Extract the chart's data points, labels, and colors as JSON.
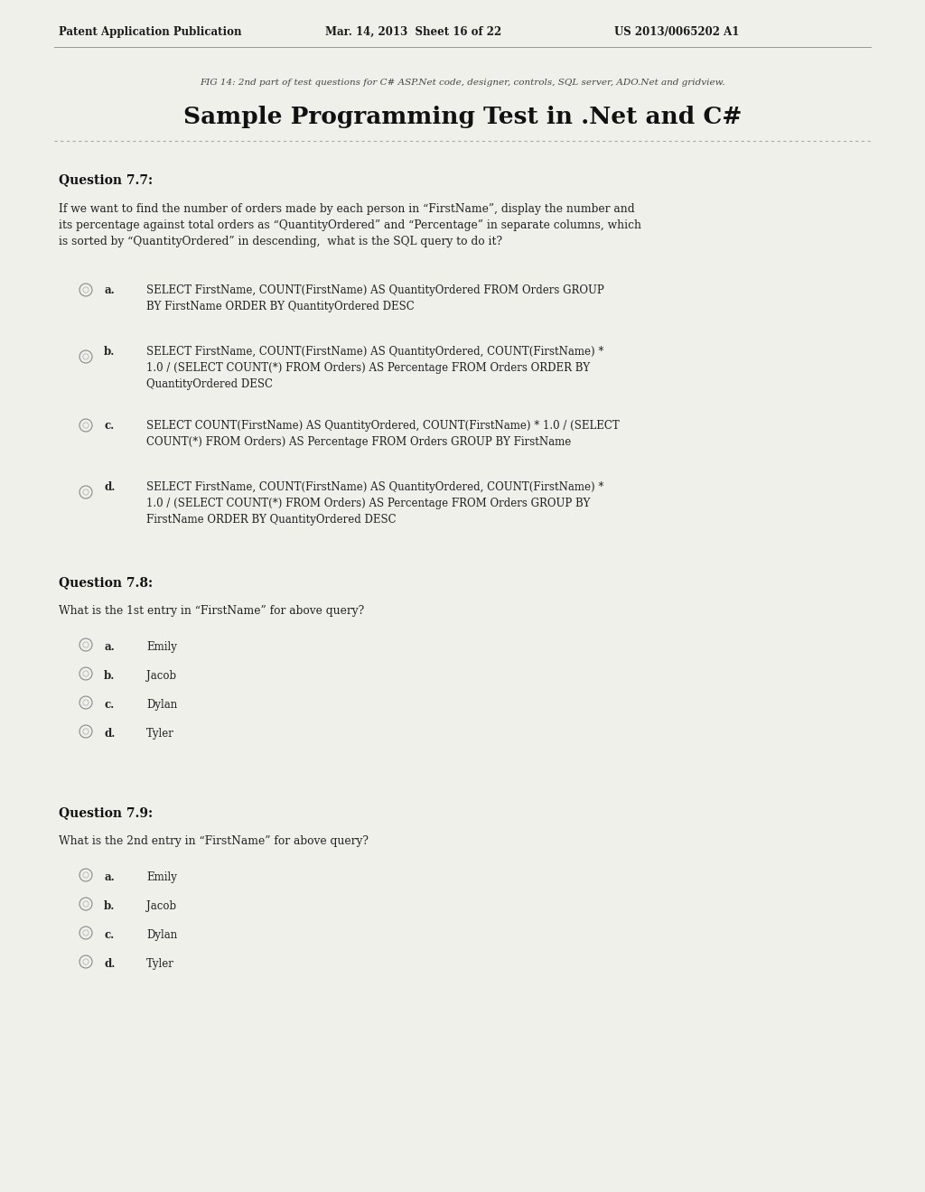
{
  "bg_color": "#f0f0eb",
  "header_left": "Patent Application Publication",
  "header_mid": "Mar. 14, 2013  Sheet 16 of 22",
  "header_right": "US 2013/0065202 A1",
  "fig_caption": "FIG 14: 2nd part of test questions for C# ASP.Net code, designer, controls, SQL server, ADO.Net and gridview.",
  "main_title": "Sample Programming Test in .Net and C#",
  "q77_title": "Question 7.7:",
  "q77_text": "If we want to find the number of orders made by each person in “FirstName”, display the number and\nits percentage against total orders as “QuantityOrdered” and “Percentage” in separate columns, which\nis sorted by “QuantityOrdered” in descending,  what is the SQL query to do it?",
  "q77_options": [
    {
      "label": "a.",
      "text": "SELECT FirstName, COUNT(FirstName) AS QuantityOrdered FROM Orders GROUP\nBY FirstName ORDER BY QuantityOrdered DESC"
    },
    {
      "label": "b.",
      "text": "SELECT FirstName, COUNT(FirstName) AS QuantityOrdered, COUNT(FirstName) *\n1.0 / (SELECT COUNT(*) FROM Orders) AS Percentage FROM Orders ORDER BY\nQuantityOrdered DESC"
    },
    {
      "label": "c.",
      "text": "SELECT COUNT(FirstName) AS QuantityOrdered, COUNT(FirstName) * 1.0 / (SELECT\nCOUNT(*) FROM Orders) AS Percentage FROM Orders GROUP BY FirstName"
    },
    {
      "label": "d.",
      "text": "SELECT FirstName, COUNT(FirstName) AS QuantityOrdered, COUNT(FirstName) *\n1.0 / (SELECT COUNT(*) FROM Orders) AS Percentage FROM Orders GROUP BY\nFirstName ORDER BY QuantityOrdered DESC"
    }
  ],
  "q78_title": "Question 7.8:",
  "q78_text": "What is the 1st entry in “FirstName” for above query?",
  "q78_options": [
    {
      "label": "a.",
      "text": "Emily"
    },
    {
      "label": "b.",
      "text": "Jacob"
    },
    {
      "label": "c.",
      "text": "Dylan"
    },
    {
      "label": "d.",
      "text": "Tyler"
    }
  ],
  "q79_title": "Question 7.9:",
  "q79_text": "What is the 2nd entry in “FirstName” for above query?",
  "q79_options": [
    {
      "label": "a.",
      "text": "Emily"
    },
    {
      "label": "b.",
      "text": "Jacob"
    },
    {
      "label": "c.",
      "text": "Dylan"
    },
    {
      "label": "d.",
      "text": "Tyler"
    }
  ]
}
